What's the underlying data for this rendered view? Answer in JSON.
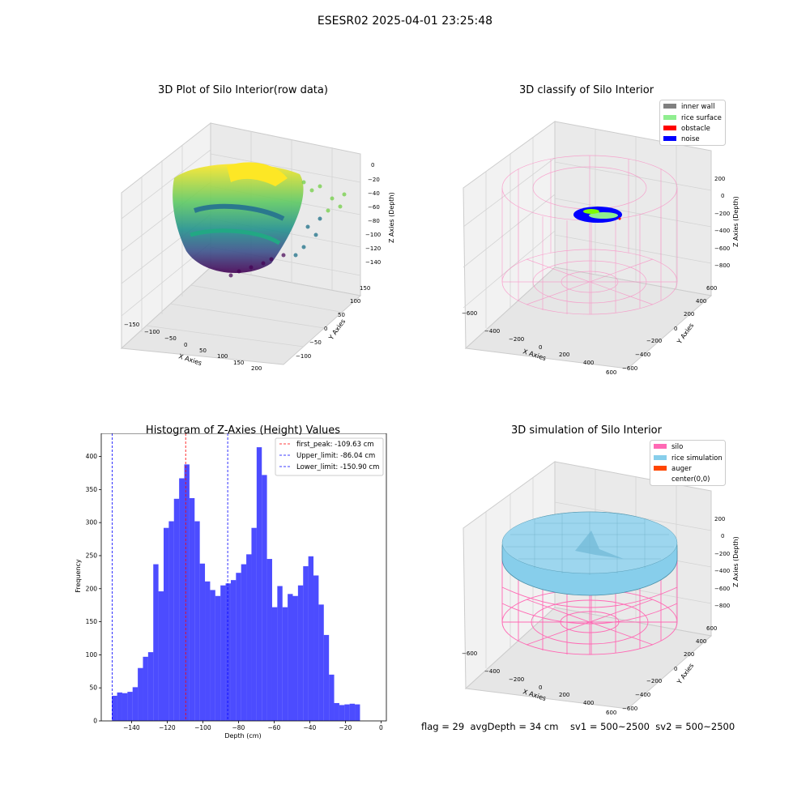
{
  "suptitle": "ESESR02 2025-04-01 23:25:48",
  "panel1": {
    "title": "3D Plot of Silo Interior(row data)",
    "xlabel": "X Axies",
    "ylabel": "Y Axies",
    "zlabel": "Z Axies (Depth)",
    "xticks": [
      "−150",
      "−100",
      "−50",
      "0",
      "50",
      "100",
      "150",
      "200"
    ],
    "yticks": [
      "−100",
      "−50",
      "0",
      "50",
      "100",
      "150"
    ],
    "zticks": [
      "0",
      "−20",
      "−40",
      "−60",
      "−80",
      "−100",
      "−120",
      "−140"
    ]
  },
  "panel2": {
    "title": "3D classify of Silo Interior",
    "xlabel": "X Axies",
    "ylabel": "Y Axies",
    "zlabel": "Z Axies (Depth)",
    "xticks": [
      "−600",
      "−400",
      "−200",
      "0",
      "200",
      "400",
      "600"
    ],
    "yticks": [
      "−600",
      "−400",
      "−200",
      "0",
      "200",
      "400",
      "600"
    ],
    "zticks": [
      "200",
      "0",
      "−200",
      "−400",
      "−600",
      "−800"
    ],
    "legend": [
      {
        "label": "inner wall",
        "color": "#808080"
      },
      {
        "label": "rice surface",
        "color": "#90ee90"
      },
      {
        "label": "obstacle",
        "color": "#ff0000"
      },
      {
        "label": "noise",
        "color": "#0000ff"
      }
    ]
  },
  "panel4": {
    "title": "3D simulation of Silo Interior",
    "xlabel": "X Axies",
    "ylabel": "Y Axies",
    "zlabel": "Z Axies (Depth)",
    "xticks": [
      "−600",
      "−400",
      "−200",
      "0",
      "200",
      "400",
      "600"
    ],
    "yticks": [
      "−600",
      "−400",
      "−200",
      "0",
      "200",
      "400",
      "600"
    ],
    "zticks": [
      "200",
      "0",
      "−200",
      "−400",
      "−600",
      "−800"
    ],
    "legend": [
      {
        "label": "silo",
        "color": "#ff69b4"
      },
      {
        "label": "rice simulation",
        "color": "#87ceeb"
      },
      {
        "label": "auger",
        "color": "#ff4500"
      },
      {
        "label": "center(0,0)",
        "color": "none"
      }
    ]
  },
  "footer": "flag = 29  avgDepth = 34 cm    sv1 = 500~2500  sv2 = 500~2500",
  "chart_data": [
    {
      "type": "bar",
      "title": "Histogram of Z-Axies (Height) Values",
      "xlabel": "Depth (cm)",
      "ylabel": "Frequency",
      "xlim": [
        -157,
        3
      ],
      "ylim": [
        0,
        435
      ],
      "xticks": [
        -140,
        -120,
        -100,
        -80,
        -60,
        -40,
        -20,
        0
      ],
      "xticklabels": [
        "−140",
        "−120",
        "−100",
        "−80",
        "−60",
        "−40",
        "−20",
        "0"
      ],
      "yticks": [
        0,
        50,
        100,
        150,
        200,
        250,
        300,
        350,
        400
      ],
      "bar_color": "#0000ff",
      "bin_start": -151,
      "bin_width": 2.9,
      "values": [
        38,
        43,
        42,
        44,
        51,
        80,
        97,
        104,
        237,
        196,
        292,
        302,
        336,
        367,
        388,
        337,
        302,
        238,
        211,
        198,
        189,
        205,
        208,
        213,
        224,
        237,
        252,
        292,
        414,
        372,
        245,
        172,
        204,
        172,
        192,
        189,
        205,
        234,
        249,
        220,
        176,
        130,
        70,
        27,
        24,
        25,
        26,
        25
      ],
      "reference_lines": [
        {
          "label": "first_peak: -109.63 cm",
          "x": -109.63,
          "color": "#ff0000"
        },
        {
          "label": "Upper_limit: -86.04 cm",
          "x": -86.04,
          "color": "#0000ff"
        },
        {
          "label": "Lower_limit: -150.90 cm",
          "x": -150.9,
          "color": "#0000ff"
        }
      ]
    }
  ]
}
